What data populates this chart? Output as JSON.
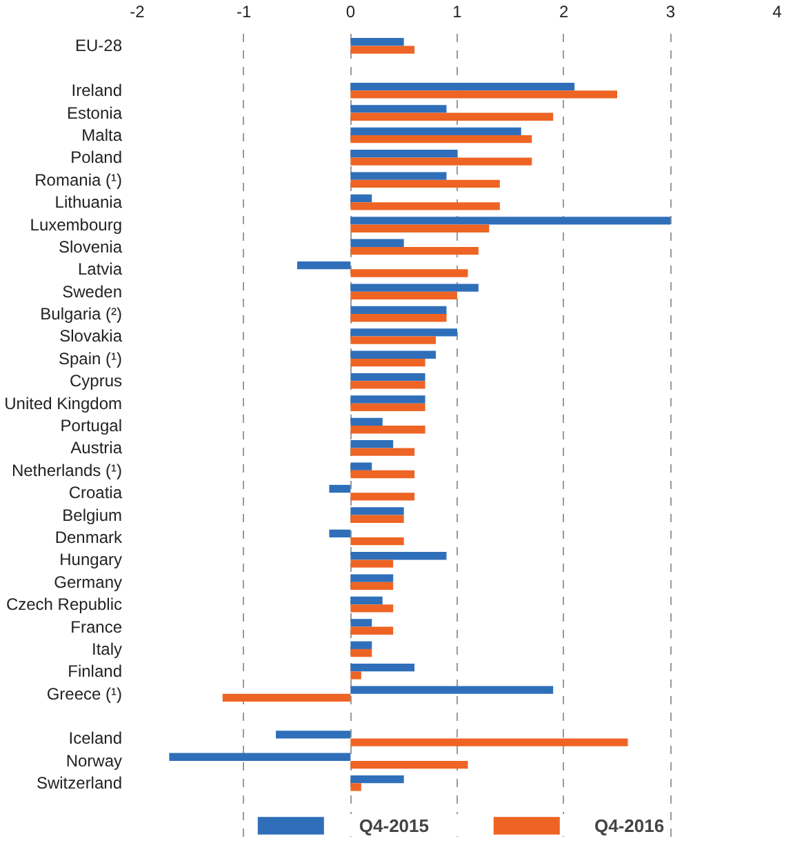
{
  "chart_data": {
    "type": "bar",
    "orientation": "horizontal",
    "categories": [
      "EU-28",
      null,
      "Ireland",
      "Estonia",
      "Malta",
      "Poland",
      "Romania (¹)",
      "Lithuania",
      "Luxembourg",
      "Slovenia",
      "Latvia",
      "Sweden",
      "Bulgaria (²)",
      "Slovakia",
      "Spain (¹)",
      "Cyprus",
      "United Kingdom",
      "Portugal",
      "Austria",
      "Netherlands (¹)",
      "Croatia",
      "Belgium",
      "Denmark",
      "Hungary",
      "Germany",
      "Czech Republic",
      "France",
      "Italy",
      "Finland",
      "Greece (¹)",
      null,
      "Iceland",
      "Norway",
      "Switzerland"
    ],
    "series": [
      {
        "name": "Q4-2015",
        "color": "#2f6fba",
        "values": [
          0.5,
          null,
          2.1,
          0.9,
          1.6,
          1.0,
          0.9,
          0.2,
          3.0,
          0.5,
          -0.5,
          1.2,
          0.9,
          1.0,
          0.8,
          0.7,
          0.7,
          0.3,
          0.4,
          0.2,
          -0.2,
          0.5,
          -0.2,
          0.9,
          0.4,
          0.3,
          0.2,
          0.2,
          0.6,
          1.9,
          null,
          -0.7,
          -1.7,
          0.5
        ]
      },
      {
        "name": "Q4-2016",
        "color": "#ee6424",
        "values": [
          0.6,
          null,
          2.5,
          1.9,
          1.7,
          1.7,
          1.4,
          1.4,
          1.3,
          1.2,
          1.1,
          1.0,
          0.9,
          0.8,
          0.7,
          0.7,
          0.7,
          0.7,
          0.6,
          0.6,
          0.6,
          0.5,
          0.5,
          0.4,
          0.4,
          0.4,
          0.4,
          0.2,
          0.1,
          -1.2,
          null,
          2.6,
          1.1,
          0.1
        ]
      }
    ],
    "xlim": [
      -2,
      4
    ],
    "xticks": [
      -2,
      -1,
      0,
      1,
      2,
      3,
      4
    ],
    "grid": "x",
    "legend": "bottom"
  }
}
